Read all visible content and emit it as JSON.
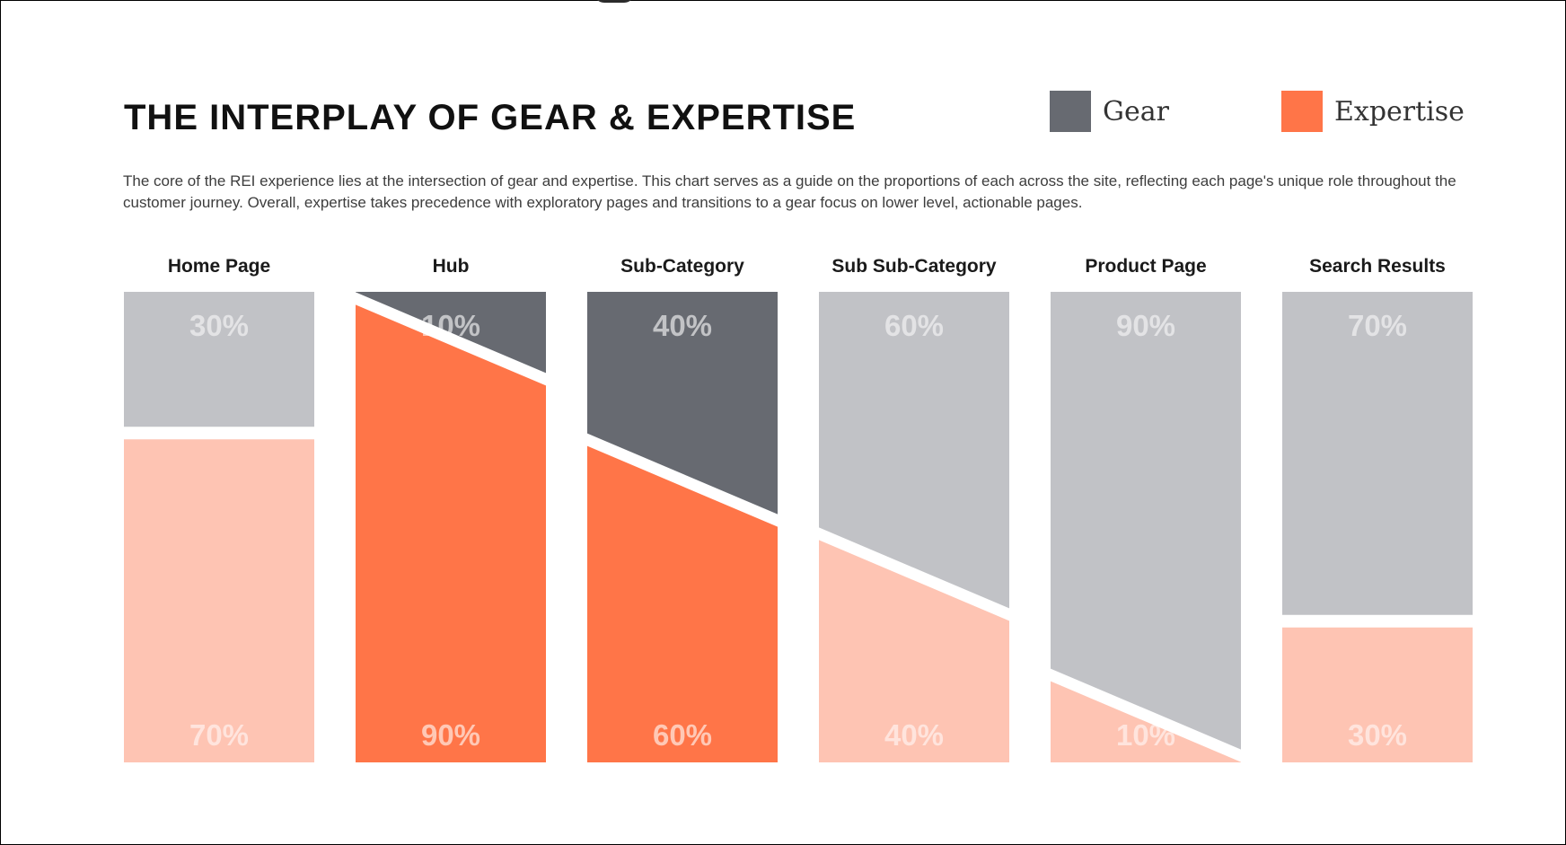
{
  "header": {
    "title": "THE INTERPLAY OF GEAR & EXPERTISE",
    "description": "The core of the REI experience lies at the intersection of gear and expertise. This chart serves as a guide on the proportions of each across the site, reflecting each page's unique role throughout the customer journey. Overall, expertise takes precedence with exploratory pages and transitions to a gear focus on lower level, actionable pages."
  },
  "legend": {
    "gear": {
      "label": "Gear",
      "color": "#676a71"
    },
    "expertise": {
      "label": "Expertise",
      "color": "#ff7548"
    }
  },
  "colors": {
    "gear_dark": "#676a71",
    "gear_light": "#c1c2c6",
    "expertise_dark": "#ff7548",
    "expertise_light": "#fec4b3",
    "value_label": "#ffffff"
  },
  "chart_data": {
    "type": "bar",
    "stacked": true,
    "title": "THE INTERPLAY OF GEAR & EXPERTISE",
    "categories": [
      "Home Page",
      "Hub",
      "Sub-Category",
      "Sub Sub-Category",
      "Product Page",
      "Search Results"
    ],
    "series": [
      {
        "name": "Gear",
        "values": [
          30,
          10,
          40,
          60,
          90,
          70
        ]
      },
      {
        "name": "Expertise",
        "values": [
          70,
          90,
          60,
          40,
          10,
          30
        ]
      }
    ],
    "value_labels": {
      "Gear": [
        "30%",
        "10%",
        "40%",
        "60%",
        "90%",
        "70%"
      ],
      "Expertise": [
        "70%",
        "90%",
        "60%",
        "40%",
        "10%",
        "30%"
      ]
    },
    "highlighted": [
      false,
      true,
      true,
      false,
      false,
      false
    ],
    "boundary_style": [
      "flat",
      "slanted",
      "slanted",
      "slanted",
      "slanted",
      "flat"
    ],
    "ylim": [
      0,
      100
    ],
    "unit": "%"
  }
}
